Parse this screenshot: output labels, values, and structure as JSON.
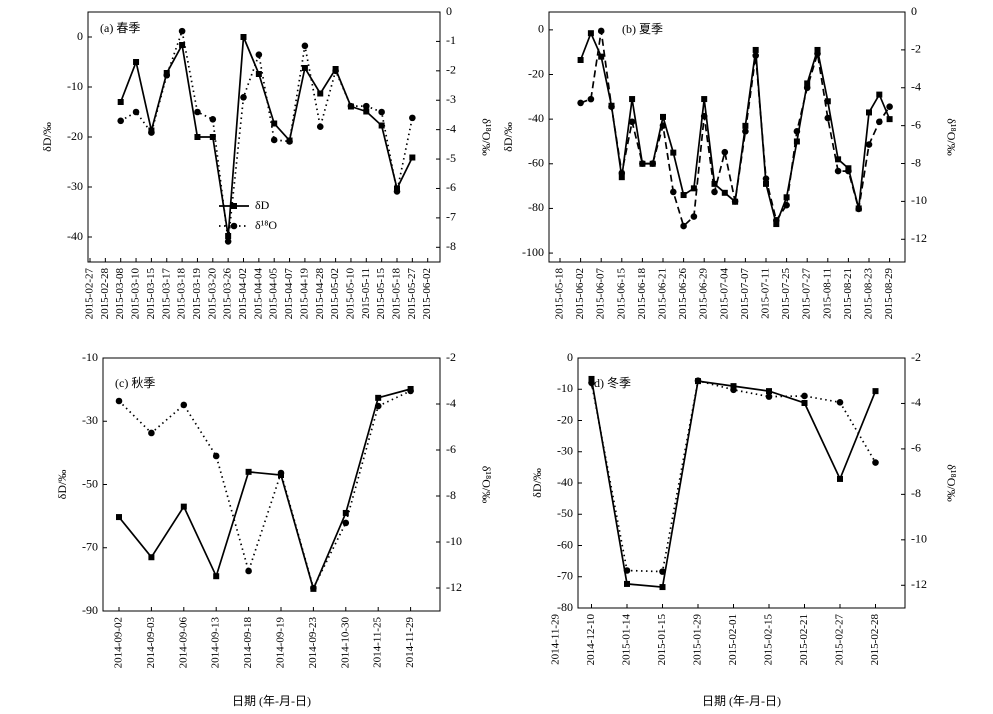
{
  "chart_data": [
    {
      "type": "line",
      "title": "(a) 春季",
      "ylabel": "δD/‰",
      "y2label": "δ¹⁸O/‰",
      "legend": "lower center",
      "categories": [
        "2015-02-27",
        "2015-02-28",
        "2015-03-08",
        "2015-03-10",
        "2015-03-15",
        "2015-03-17",
        "2015-03-18",
        "2015-03-19",
        "2015-03-20",
        "2015-03-26",
        "2015-04-02",
        "2015-04-04",
        "2015-04-05",
        "2015-04-07",
        "2015-04-19",
        "2015-04-28",
        "2015-05-02",
        "2015-05-10",
        "2015-05-11",
        "2015-05-15",
        "2015-05-18",
        "2015-05-27",
        "2015-06-02"
      ],
      "series": [
        {
          "name": "δD",
          "color": "#000000",
          "marker": "square",
          "dash": "solid",
          "values": [
            null,
            null,
            -13,
            -5,
            -18.7,
            -7.2,
            -1.6,
            -20,
            -20,
            -39.8,
            0,
            -7.4,
            -17.3,
            -20.7,
            -6.2,
            -11.3,
            -6.4,
            -13.9,
            -14.9,
            -17.7,
            -30.3,
            -24.1,
            null
          ]
        },
        {
          "name": "δ¹⁸O",
          "color": "#000000",
          "marker": "circle",
          "dash": "dotted",
          "axis": "y2",
          "values": [
            null,
            null,
            -3.7,
            -3.4,
            -4.1,
            -2.15,
            -0.65,
            -3.4,
            -3.65,
            -7.8,
            -2.9,
            -1.45,
            -4.35,
            -4.4,
            -1.15,
            -3.9,
            -2.0,
            -3.2,
            -3.2,
            -3.4,
            -6.1,
            -3.6,
            null
          ]
        }
      ],
      "ylim": [
        -45,
        5
      ],
      "yticks": [
        0,
        -10,
        -20,
        -30,
        -40
      ],
      "y2lim": [
        -8.5,
        0
      ],
      "y2ticks": [
        0,
        -1,
        -2,
        -3,
        -4,
        -5,
        -6,
        -7,
        -8
      ]
    },
    {
      "type": "line",
      "title": "(b) 夏季",
      "ylabel": "δD/‰",
      "y2label": "δ¹⁸O/‰",
      "categories": [
        "2015-05-18",
        null,
        "2015-06-02",
        null,
        "2015-06-07",
        null,
        "2015-06-15",
        null,
        "2015-06-18",
        null,
        "2015-06-21",
        null,
        "2015-06-26",
        null,
        "2015-06-29",
        null,
        "2015-07-04",
        null,
        "2015-07-07",
        null,
        "2015-07-11",
        null,
        "2015-07-25",
        null,
        "2015-07-27",
        null,
        "2015-08-11",
        null,
        "2015-08-21",
        null,
        "2015-08-23",
        null,
        "2015-08-29"
      ],
      "series": [
        {
          "color": "#000000",
          "marker": "square",
          "dash": "solid",
          "values": [
            null,
            null,
            -13.5,
            -1.5,
            -12,
            -34,
            -66,
            -31,
            -60,
            -60,
            -39,
            -55,
            -74,
            -71,
            -31,
            -69,
            -73,
            -77,
            -43,
            -9,
            -69,
            -87,
            -75,
            -50,
            -24,
            -9,
            -32,
            -58,
            -62,
            -80,
            -37,
            -29,
            -40
          ]
        },
        {
          "color": "#000000",
          "marker": "circle",
          "dash": "dashed",
          "axis": "y2",
          "values": [
            null,
            null,
            -4.8,
            -4.6,
            -1.0,
            -5.0,
            -8.5,
            -5.8,
            -8.0,
            -8.0,
            -6.0,
            -9.5,
            -11.3,
            -10.8,
            -5.5,
            -9.5,
            -7.4,
            -10.0,
            -6.3,
            -2.3,
            -8.8,
            -11.0,
            -10.2,
            -6.3,
            -4.0,
            -2.2,
            -5.6,
            -8.4,
            -8.4,
            -10.4,
            -7.0,
            -5.8,
            -5.0
          ]
        }
      ],
      "ylim": [
        -104,
        8
      ],
      "yticks": [
        0,
        -20,
        -40,
        -60,
        -80,
        -100
      ],
      "y2lim": [
        -13.2,
        0
      ],
      "y2ticks": [
        0,
        -2,
        -4,
        -6,
        -8,
        -10,
        -12
      ]
    },
    {
      "type": "line",
      "title": "(c) 秋季",
      "ylabel": "δD/‰",
      "y2label": "δ¹⁸O/‰",
      "xlabel": "日期 (年-月-日)",
      "categories": [
        "2014-09-02",
        "2014-09-03",
        "2014-09-06",
        "2014-09-13",
        "2014-09-18",
        "2014-09-19",
        "2014-09-23",
        "2014-10-30",
        "2014-11-25",
        "2014-11-29"
      ],
      "series": [
        {
          "color": "#000000",
          "marker": "square",
          "dash": "solid",
          "values": [
            -60.3,
            -73,
            -57,
            -79,
            -46,
            -47,
            -83,
            -59,
            -22.6,
            -19.8
          ]
        },
        {
          "color": "#000000",
          "marker": "circle",
          "dash": "dotted",
          "axis": "y2",
          "values": [
            -3.87,
            -5.26,
            -4.04,
            -6.26,
            -11.26,
            -7.0,
            -12.0,
            -9.17,
            -4.09,
            -3.43
          ]
        }
      ],
      "ylim": [
        -90,
        -10
      ],
      "yticks": [
        -10,
        -30,
        -50,
        -70,
        -90
      ],
      "y2lim": [
        -13,
        -2
      ],
      "y2ticks": [
        -2,
        -4,
        -6,
        -8,
        -10,
        -12
      ]
    },
    {
      "type": "line",
      "title": "(d) 冬季",
      "ylabel": "δD/‰",
      "y2label": "δ¹⁸O/‰",
      "xlabel": "日期 (年-月-日)",
      "categories": [
        "2014-11-29",
        "2014-12-10",
        "2015-01-14",
        "2015-01-15",
        "2015-01-29",
        "2015-02-01",
        "2015-02-15",
        "2015-02-21",
        "2015-02-27",
        "2015-02-28"
      ],
      "series": [
        {
          "color": "#000000",
          "marker": "square",
          "dash": "solid",
          "values": [
            null,
            -6.7,
            -72.3,
            -73.3,
            -7.4,
            -9,
            -10.6,
            -14.4,
            -38.7,
            -10.6
          ]
        },
        {
          "color": "#000000",
          "marker": "circle",
          "dash": "dotted",
          "axis": "y2",
          "values": [
            null,
            -3.09,
            -11.35,
            -11.4,
            -3.0,
            -3.4,
            -3.7,
            -3.67,
            -3.95,
            -6.6
          ]
        }
      ],
      "ylim": [
        -80,
        0
      ],
      "yticks": [
        0,
        -10,
        -20,
        -30,
        -40,
        -50,
        -60,
        -70,
        -80
      ],
      "y2lim": [
        -13,
        -2
      ],
      "y2ticks": [
        -2,
        -4,
        -6,
        -8,
        -10,
        -12
      ]
    }
  ]
}
